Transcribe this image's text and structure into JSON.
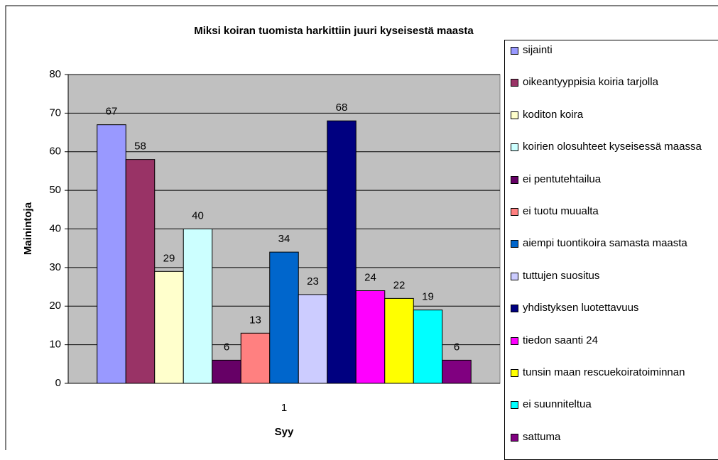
{
  "chart_data": {
    "type": "bar",
    "title": "Miksi koiran tuomista harkittiin juuri kyseisestä maasta",
    "x_label": "Syy",
    "y_label": "Mainintoja",
    "categories": [
      "1"
    ],
    "series": [
      {
        "name": "sijainti",
        "color": "#9999ff",
        "values": [
          67
        ]
      },
      {
        "name": "oikeantyyppisia koiria tarjolla",
        "color": "#993366",
        "values": [
          58
        ]
      },
      {
        "name": "koditon koira",
        "color": "#ffffcc",
        "values": [
          29
        ]
      },
      {
        "name": "koirien olosuhteet kyseisessä maassa",
        "color": "#ccffff",
        "values": [
          40
        ]
      },
      {
        "name": "ei pentutehtailua",
        "color": "#660066",
        "values": [
          6
        ]
      },
      {
        "name": "ei tuotu muualta",
        "color": "#ff8080",
        "values": [
          13
        ]
      },
      {
        "name": "aiempi tuontikoira samasta maasta",
        "color": "#0066cc",
        "values": [
          34
        ]
      },
      {
        "name": "tuttujen suositus",
        "color": "#ccccff",
        "values": [
          23
        ]
      },
      {
        "name": "yhdistyksen luotettavuus",
        "color": "#000080",
        "values": [
          68
        ]
      },
      {
        "name": "tiedon saanti 24",
        "color": "#ff00ff",
        "values": [
          24
        ]
      },
      {
        "name": "tunsin maan rescuekoiratoiminnan",
        "color": "#ffff00",
        "values": [
          22
        ]
      },
      {
        "name": "ei suunniteltua",
        "color": "#00ffff",
        "values": [
          19
        ]
      },
      {
        "name": "sattuma",
        "color": "#800080",
        "values": [
          6
        ]
      }
    ],
    "ylim": [
      0,
      80
    ],
    "yticks": [
      0,
      10,
      20,
      30,
      40,
      50,
      60,
      70,
      80
    ],
    "grid": true,
    "legend": "right"
  }
}
